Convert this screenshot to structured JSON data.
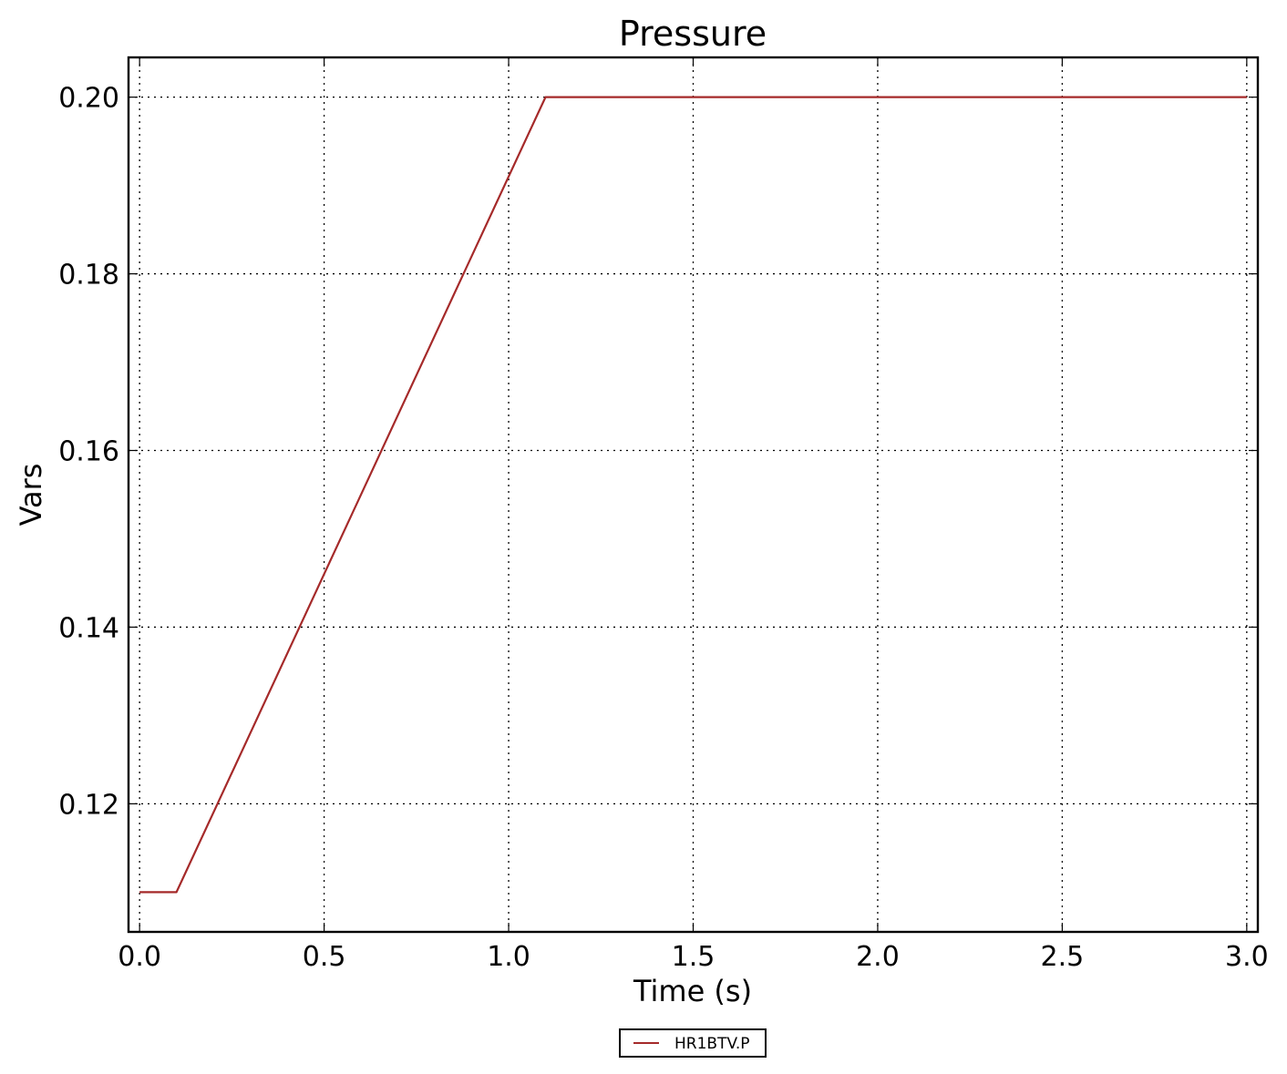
{
  "chart_data": {
    "type": "line",
    "title": "Pressure",
    "xlabel": "Time (s)",
    "ylabel": "Vars",
    "xlim": [
      -0.03,
      3.03
    ],
    "ylim": [
      0.1055,
      0.2045
    ],
    "xticks": [
      0.0,
      0.5,
      1.0,
      1.5,
      2.0,
      2.5,
      3.0
    ],
    "xtick_labels": [
      "0.0",
      "0.5",
      "1.0",
      "1.5",
      "2.0",
      "2.5",
      "3.0"
    ],
    "yticks": [
      0.12,
      0.14,
      0.16,
      0.18,
      0.2
    ],
    "ytick_labels": [
      "0.12",
      "0.14",
      "0.16",
      "0.18",
      "0.20"
    ],
    "grid": true,
    "legend_position": "bottom-center",
    "series": [
      {
        "name": "HR1BTV.P",
        "color": "#a52a2a",
        "x": [
          0.0,
          0.1,
          1.1,
          3.0
        ],
        "y": [
          0.11,
          0.11,
          0.2,
          0.2
        ]
      }
    ]
  }
}
